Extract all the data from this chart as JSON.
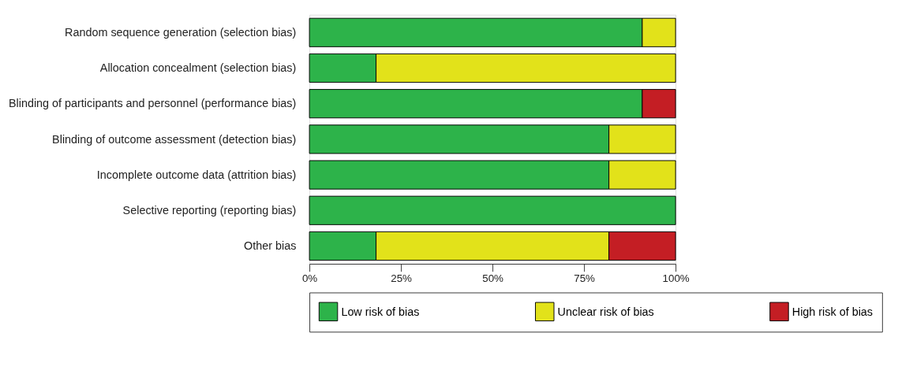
{
  "chart_data": {
    "type": "bar",
    "orientation": "horizontal",
    "stacked": true,
    "categories": [
      "Random sequence generation (selection bias)",
      "Allocation concealment (selection bias)",
      "Blinding of participants and personnel (performance bias)",
      "Blinding of outcome assessment (detection bias)",
      "Incomplete outcome data (attrition bias)",
      "Selective reporting (reporting bias)",
      "Other bias"
    ],
    "series": [
      {
        "name": "Low risk of bias",
        "color": "#2db34a",
        "values": [
          90.9,
          18.2,
          90.9,
          81.8,
          81.8,
          100,
          18.2
        ]
      },
      {
        "name": "Unclear risk of bias",
        "color": "#e2e21a",
        "values": [
          9.1,
          81.8,
          null,
          18.2,
          18.2,
          null,
          63.6
        ]
      },
      {
        "name": "High risk of bias",
        "color": "#c41e24",
        "values": [
          null,
          null,
          9.1,
          null,
          null,
          null,
          18.2
        ]
      }
    ],
    "xlim": [
      0,
      100
    ],
    "xticks": [
      {
        "value": 0,
        "label": "0%"
      },
      {
        "value": 25,
        "label": "25%"
      },
      {
        "value": 50,
        "label": "50%"
      },
      {
        "value": 75,
        "label": "75%"
      },
      {
        "value": 100,
        "label": "100%"
      }
    ],
    "legend": "bottom",
    "grid": false
  }
}
